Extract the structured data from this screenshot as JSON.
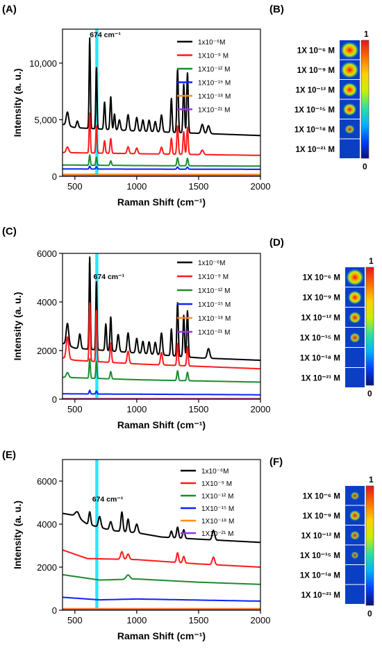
{
  "figure_title": "",
  "highlight_band": {
    "x0": 665,
    "x1": 690,
    "color": "#00e5ff"
  },
  "colorbar": {
    "stops": [
      "#08127a",
      "#0040ff",
      "#00b3ff",
      "#2fe0a0",
      "#c8f000",
      "#ffd000",
      "#ff7000",
      "#e8141e"
    ]
  },
  "chart_data": [
    {
      "panel": "(A)",
      "type": "line",
      "title": "",
      "xlabel": "Raman Shift (cm⁻¹)",
      "ylabel": "Intensity  (a. u.)",
      "xlim": [
        400,
        2000
      ],
      "ylim": [
        0,
        13000
      ],
      "xticks": [
        500,
        1000,
        1500,
        2000
      ],
      "yticks": [
        0,
        5000,
        10000
      ],
      "ytick_labels": [
        "0",
        "5,000",
        "10,000"
      ],
      "annotation": {
        "text": "674 cm⁻¹",
        "x": 620,
        "y": 12300
      },
      "series": [
        {
          "name": "1x10⁻⁶M",
          "color": "#000000",
          "baseline": [
            [
              400,
              4600
            ],
            [
              500,
              4300
            ],
            [
              1000,
              4000
            ],
            [
              1500,
              3800
            ],
            [
              2000,
              3600
            ]
          ],
          "peaks": [
            [
              440,
              1200,
              10
            ],
            [
              520,
              600,
              8
            ],
            [
              620,
              8000,
              5
            ],
            [
              674,
              5400,
              5
            ],
            [
              740,
              2400,
              6
            ],
            [
              790,
              2900,
              6
            ],
            [
              820,
              1400,
              6
            ],
            [
              860,
              900,
              8
            ],
            [
              930,
              1400,
              8
            ],
            [
              1000,
              1200,
              8
            ],
            [
              1050,
              1000,
              8
            ],
            [
              1100,
              1000,
              8
            ],
            [
              1150,
              900,
              8
            ],
            [
              1200,
              1500,
              8
            ],
            [
              1280,
              3000,
              6
            ],
            [
              1330,
              5600,
              6
            ],
            [
              1380,
              4300,
              6
            ],
            [
              1410,
              5300,
              6
            ],
            [
              1530,
              800,
              10
            ],
            [
              1580,
              700,
              10
            ]
          ]
        },
        {
          "name": "1X10⁻⁹ M",
          "color": "#ff1a1a",
          "baseline": [
            [
              400,
              2100
            ],
            [
              1000,
              2000
            ],
            [
              2000,
              1850
            ]
          ],
          "peaks": [
            [
              440,
              500,
              10
            ],
            [
              620,
              3500,
              5
            ],
            [
              674,
              2400,
              5
            ],
            [
              740,
              1100,
              6
            ],
            [
              790,
              1300,
              6
            ],
            [
              930,
              600,
              8
            ],
            [
              1000,
              500,
              8
            ],
            [
              1200,
              600,
              8
            ],
            [
              1280,
              1400,
              6
            ],
            [
              1330,
              2500,
              6
            ],
            [
              1380,
              2000,
              6
            ],
            [
              1410,
              2400,
              6
            ],
            [
              1530,
              400,
              10
            ]
          ]
        },
        {
          "name": "1X10⁻¹² M",
          "color": "#1a8c2e",
          "baseline": [
            [
              400,
              1000
            ],
            [
              1000,
              950
            ],
            [
              2000,
              900
            ]
          ],
          "peaks": [
            [
              620,
              900,
              5
            ],
            [
              674,
              700,
              5
            ],
            [
              790,
              400,
              6
            ],
            [
              1330,
              700,
              6
            ],
            [
              1410,
              650,
              6
            ]
          ]
        },
        {
          "name": "1X10⁻¹⁵ M",
          "color": "#0a22ff",
          "baseline": [
            [
              400,
              650
            ],
            [
              2000,
              620
            ]
          ],
          "peaks": [
            [
              620,
              250,
              5
            ],
            [
              674,
              200,
              5
            ],
            [
              1330,
              200,
              6
            ],
            [
              1410,
              180,
              6
            ]
          ]
        },
        {
          "name": "1X10⁻¹⁸ M",
          "color": "#ff8c1a",
          "baseline": [
            [
              400,
              180
            ],
            [
              2000,
              170
            ]
          ],
          "peaks": [
            [
              674,
              60,
              6
            ]
          ]
        },
        {
          "name": "1X10⁻²¹ M",
          "color": "#9b30ff",
          "baseline": [
            [
              400,
              40
            ],
            [
              2000,
              40
            ]
          ],
          "peaks": []
        }
      ],
      "map": {
        "labels": [
          "1X 10⁻⁶ M",
          "1X 10⁻⁹ M",
          "1X 10⁻¹² M",
          "1X 10⁻¹⁵ M",
          "1X 10⁻¹⁸ M",
          "1X 10⁻²¹ M"
        ],
        "levels": [
          0.95,
          0.8,
          0.65,
          0.55,
          0.35,
          0.0
        ],
        "colorbar_max": "1",
        "colorbar_min": "0"
      }
    },
    {
      "panel": "(C)",
      "type": "line",
      "title": "",
      "xlabel": "Raman Shift (cm⁻¹)",
      "ylabel": "Intensity  (a. u.)",
      "xlim": [
        400,
        2000
      ],
      "ylim": [
        0,
        6000
      ],
      "xticks": [
        500,
        1000,
        1500,
        2000
      ],
      "yticks": [
        0,
        2000,
        4000,
        6000
      ],
      "ytick_labels": [
        "0",
        "2000",
        "4000",
        "6000"
      ],
      "annotation": {
        "text": "674 cm⁻¹",
        "x": 650,
        "y": 4950
      },
      "series": [
        {
          "name": "1x10⁻⁶M",
          "color": "#000000",
          "baseline": [
            [
              400,
              2300
            ],
            [
              500,
              2100
            ],
            [
              1000,
              1900
            ],
            [
              1500,
              1700
            ],
            [
              2000,
              1600
            ]
          ],
          "peaks": [
            [
              440,
              900,
              10
            ],
            [
              540,
              600,
              8
            ],
            [
              620,
              3800,
              5
            ],
            [
              674,
              2800,
              5
            ],
            [
              750,
              1100,
              6
            ],
            [
              790,
              1400,
              6
            ],
            [
              850,
              700,
              8
            ],
            [
              930,
              800,
              8
            ],
            [
              1000,
              600,
              8
            ],
            [
              1050,
              500,
              8
            ],
            [
              1100,
              500,
              8
            ],
            [
              1150,
              500,
              8
            ],
            [
              1200,
              900,
              8
            ],
            [
              1280,
              1100,
              6
            ],
            [
              1330,
              2200,
              6
            ],
            [
              1380,
              1700,
              6
            ],
            [
              1410,
              1900,
              6
            ],
            [
              1580,
              400,
              10
            ]
          ]
        },
        {
          "name": "1X10⁻⁹ M",
          "color": "#ff1a1a",
          "baseline": [
            [
              400,
              1700
            ],
            [
              500,
              1600
            ],
            [
              1000,
              1450
            ],
            [
              2000,
              1250
            ]
          ],
          "peaks": [
            [
              440,
              900,
              10
            ],
            [
              620,
              2400,
              5
            ],
            [
              674,
              2100,
              5
            ],
            [
              790,
              800,
              6
            ],
            [
              930,
              500,
              8
            ],
            [
              1200,
              500,
              8
            ],
            [
              1330,
              900,
              6
            ],
            [
              1410,
              800,
              6
            ]
          ]
        },
        {
          "name": "1X10⁻¹² M",
          "color": "#1a8c2e",
          "baseline": [
            [
              400,
              900
            ],
            [
              1000,
              800
            ],
            [
              2000,
              700
            ]
          ],
          "peaks": [
            [
              440,
              200,
              10
            ],
            [
              620,
              800,
              5
            ],
            [
              674,
              700,
              5
            ],
            [
              790,
              300,
              6
            ],
            [
              1330,
              400,
              6
            ],
            [
              1410,
              350,
              6
            ]
          ]
        },
        {
          "name": "1X10⁻¹⁵ M",
          "color": "#0a22ff",
          "baseline": [
            [
              400,
              220
            ],
            [
              2000,
              180
            ]
          ],
          "peaks": [
            [
              620,
              150,
              5
            ],
            [
              674,
              120,
              5
            ]
          ]
        },
        {
          "name": "1X10⁻¹⁸ M",
          "color": "#ff8c1a",
          "baseline": [
            [
              400,
              30
            ],
            [
              2000,
              30
            ]
          ],
          "peaks": []
        },
        {
          "name": "1X10⁻²¹ M",
          "color": "#9b30ff",
          "baseline": [
            [
              400,
              10
            ],
            [
              2000,
              10
            ]
          ],
          "peaks": []
        }
      ],
      "map": {
        "labels": [
          "1X 10⁻⁶ M",
          "1X 10⁻⁹ M",
          "1X 10⁻¹² M",
          "1X 10⁻¹⁵ M",
          "1X 10⁻¹⁸ M",
          "1X 10⁻²¹ M"
        ],
        "levels": [
          0.95,
          0.6,
          0.5,
          0.4,
          0.0,
          0.0
        ],
        "colorbar_max": "1",
        "colorbar_min": "0"
      }
    },
    {
      "panel": "(E)",
      "type": "line",
      "title": "",
      "xlabel": "Raman Shift (cm⁻¹)",
      "ylabel": "Intensity  (a. u.)",
      "xlim": [
        400,
        2000
      ],
      "ylim": [
        0,
        7000
      ],
      "xticks": [
        500,
        1000,
        1500,
        2000
      ],
      "yticks": [
        0,
        2000,
        4000,
        6000
      ],
      "ytick_labels": [
        "0",
        "2000",
        "4000",
        "6000"
      ],
      "annotation": {
        "text": "674 cm⁻¹",
        "x": 640,
        "y": 5050
      },
      "series": [
        {
          "name": "1x10⁻⁶M",
          "color": "#000000",
          "baseline": [
            [
              400,
              4500
            ],
            [
              500,
              4400
            ],
            [
              600,
              4000
            ],
            [
              800,
              3700
            ],
            [
              1000,
              3600
            ],
            [
              1200,
              3400
            ],
            [
              1500,
              3300
            ],
            [
              2000,
              3150
            ]
          ],
          "peaks": [
            [
              520,
              250,
              15
            ],
            [
              620,
              600,
              8
            ],
            [
              700,
              500,
              10
            ],
            [
              790,
              400,
              10
            ],
            [
              880,
              900,
              8
            ],
            [
              930,
              600,
              8
            ],
            [
              1000,
              400,
              10
            ],
            [
              1280,
              300,
              8
            ],
            [
              1330,
              500,
              8
            ],
            [
              1380,
              400,
              8
            ],
            [
              1620,
              450,
              10
            ]
          ]
        },
        {
          "name": "1X10⁻⁹ M",
          "color": "#ff1a1a",
          "baseline": [
            [
              400,
              2800
            ],
            [
              600,
              2400
            ],
            [
              1000,
              2350
            ],
            [
              1500,
              2150
            ],
            [
              2000,
              2000
            ]
          ],
          "peaks": [
            [
              880,
              350,
              10
            ],
            [
              930,
              250,
              10
            ],
            [
              1330,
              450,
              8
            ],
            [
              1380,
              300,
              8
            ],
            [
              1620,
              350,
              10
            ]
          ]
        },
        {
          "name": "1X10⁻¹² M",
          "color": "#1a8c2e",
          "baseline": [
            [
              400,
              1650
            ],
            [
              700,
              1400
            ],
            [
              1000,
              1450
            ],
            [
              1500,
              1300
            ],
            [
              2000,
              1200
            ]
          ],
          "peaks": [
            [
              930,
              200,
              15
            ]
          ]
        },
        {
          "name": "1X10⁻¹⁵ M",
          "color": "#0a22ff",
          "baseline": [
            [
              400,
              600
            ],
            [
              700,
              480
            ],
            [
              1000,
              520
            ],
            [
              2000,
              420
            ]
          ],
          "peaks": []
        },
        {
          "name": "1X10⁻¹⁸ M",
          "color": "#ff8c1a",
          "baseline": [
            [
              400,
              70
            ],
            [
              2000,
              70
            ]
          ],
          "peaks": []
        },
        {
          "name": "1X10⁻²¹ M",
          "color": "#9b30ff",
          "baseline": [
            [
              400,
              20
            ],
            [
              2000,
              20
            ]
          ],
          "peaks": []
        }
      ],
      "map": {
        "labels": [
          "1X 10⁻⁶ M",
          "1X 10⁻⁹ M",
          "1X 10⁻¹² M",
          "1X 10⁻¹⁵ M",
          "1X 10⁻¹⁸ M",
          "1X 10⁻²¹ M"
        ],
        "levels": [
          0.3,
          0.45,
          0.35,
          0.25,
          0.0,
          0.0
        ],
        "colorbar_max": "1",
        "colorbar_min": "0"
      }
    }
  ]
}
